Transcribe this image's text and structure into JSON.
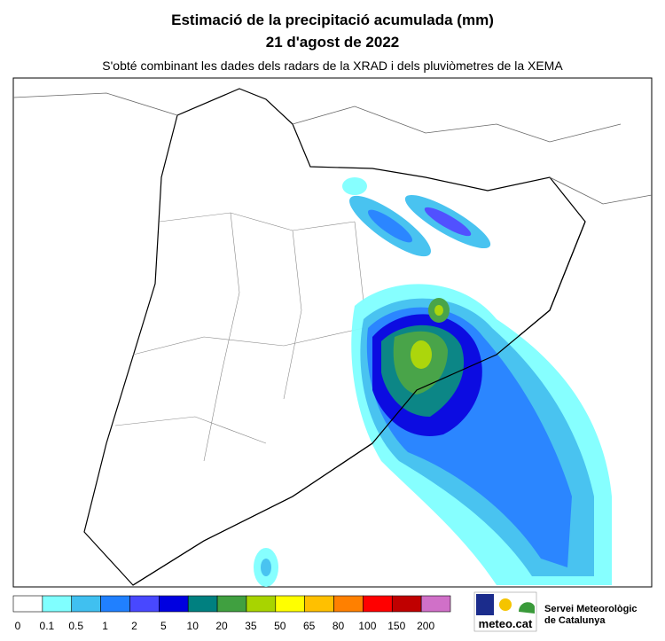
{
  "header": {
    "title": "Estimació de la precipitació acumulada (mm)",
    "date": "21 d'agost de 2022",
    "subtitle": "S'obté combinant les dades dels radars de la XRAD i dels pluviòmetres de la XEMA"
  },
  "legend": {
    "labels": [
      "0",
      "0.1",
      "0.5",
      "1",
      "2",
      "5",
      "10",
      "20",
      "35",
      "50",
      "65",
      "80",
      "100",
      "150",
      "200"
    ],
    "colors": [
      "#ffffff",
      "#80ffff",
      "#40c0f0",
      "#2080ff",
      "#4848ff",
      "#0000e0",
      "#008080",
      "#40a040",
      "#a8d400",
      "#ffff00",
      "#ffc000",
      "#ff8000",
      "#ff0000",
      "#c00000",
      "#d070c8"
    ]
  },
  "logo": {
    "brand": "meteo.cat",
    "org_line1": "Servei Meteorològic",
    "org_line2": "de Catalunya"
  }
}
